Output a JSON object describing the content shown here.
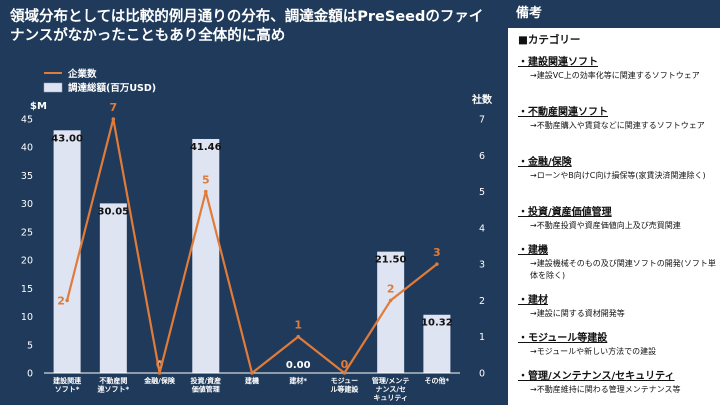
{
  "title": "領域分布としては比較的例月通りの分布、調達金額はPreSeedのファイナンスがなかったこともあり全体的に高め",
  "panel": {
    "title": "備考",
    "heading": "■カテゴリー",
    "notes": [
      {
        "label": "・建設関連ソフト",
        "desc": "→建設VC上の効率化等に関連するソフトウェア"
      },
      {
        "label": "・不動産関連ソフト",
        "desc": "→不動産購入や賃貸などに関連するソフトウェア"
      },
      {
        "label": "・金融/保険",
        "desc": "→ローンやB向けC向け損保等(家賃決済関連除く)"
      },
      {
        "label": "・投資/資産価値管理",
        "desc": "→不動産投資や資産価値向上及び売買関連"
      },
      {
        "label": "・建機",
        "desc": "→建設機械そのもの及び関連ソフトの開発(ソフト単体を除く)"
      },
      {
        "label": "・建材",
        "desc": "→建設に関する資材開発等"
      },
      {
        "label": "・モジュール等建設",
        "desc": "→モジュールや新しい方法での建設"
      },
      {
        "label": "・管理/メンテナンス/セキュリティ",
        "desc": "→不動産維持に関わる管理メンテナンス等"
      }
    ]
  },
  "chart_data": {
    "type": "bar",
    "categories": [
      "建設関連ソフト*",
      "不動産関連ソフト*",
      "金融/保険",
      "投資/資産価値管理",
      "建機",
      "建材*",
      "モジュール等建設",
      "管理/メンテナンス/セキュリティ",
      "その他*"
    ],
    "tick_labels": [
      [
        "建設関連",
        "ソフト*"
      ],
      [
        "不動産関",
        "連ソフト*"
      ],
      [
        "金融/保険"
      ],
      [
        "投資/資産",
        "価値管理"
      ],
      [
        "建機"
      ],
      [
        "建材*"
      ],
      [
        "モジュー",
        "ル等建設"
      ],
      [
        "管理/メンテ",
        "ナンス/セ",
        "キュリティ"
      ],
      [
        "その他*"
      ]
    ],
    "series": [
      {
        "name": "調達総額(百万USD)",
        "type": "bar",
        "axis": "left",
        "values": [
          43.0,
          30.05,
          0,
          41.46,
          0,
          0.0,
          0,
          21.5,
          10.32
        ],
        "labels": [
          "43.00",
          "30.05",
          "0",
          "41.46",
          "",
          "0.00",
          "",
          "21.50",
          "10.32"
        ]
      },
      {
        "name": "企業数",
        "type": "line",
        "axis": "right",
        "values": [
          2,
          7,
          0,
          5,
          0,
          1,
          0,
          2,
          3
        ],
        "labels": [
          "2",
          "7",
          "0",
          "5",
          "",
          "1",
          "0",
          "2",
          "3"
        ]
      }
    ],
    "y_left": {
      "label": "$M",
      "min": 0,
      "max": 45,
      "ticks": [
        0,
        5,
        10,
        15,
        20,
        25,
        30,
        35,
        40,
        45
      ]
    },
    "y_right": {
      "label": "社数",
      "min": 0,
      "max": 7,
      "ticks": [
        0,
        1,
        2,
        3,
        4,
        5,
        6,
        7
      ]
    },
    "legend_position": "top-left",
    "grid": false,
    "colors": {
      "bar": "#dfe4f2",
      "line": "#e07b39",
      "text": "#ffffff",
      "axis": "#ffffff",
      "background": "#1f3a5a"
    }
  }
}
